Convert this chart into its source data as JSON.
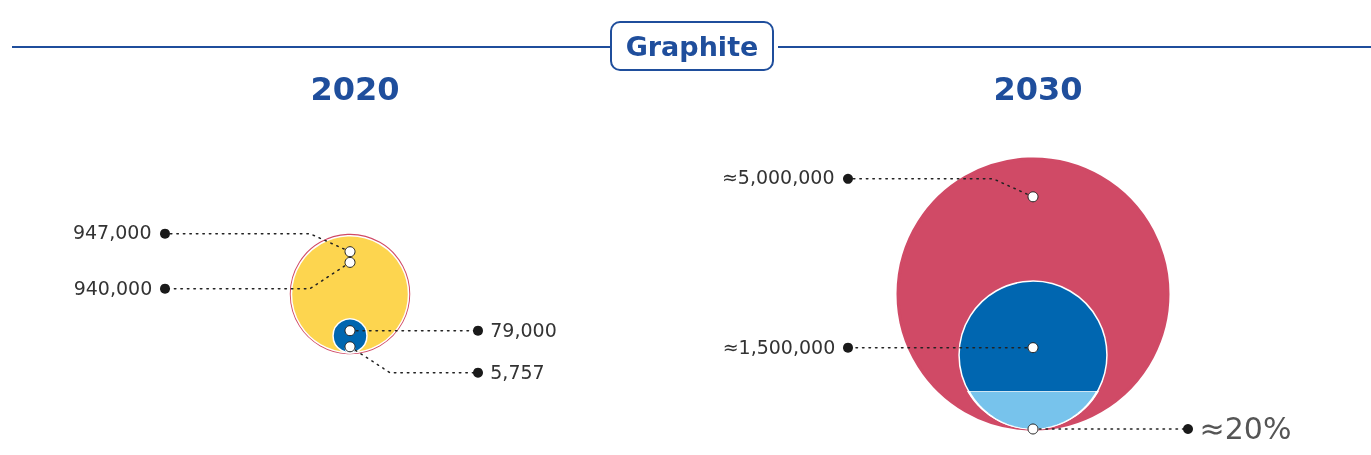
{
  "chart_data": [
    {
      "type": "other",
      "title": "Graphite",
      "subtitle": "2020",
      "categories": [
        null,
        null,
        null,
        null
      ],
      "values": [
        947000,
        940000,
        79000,
        5757
      ],
      "colors": [
        "#d04a66",
        "#fdd54f",
        "#0066b0",
        "#77c3ec"
      ],
      "value_labels": [
        "947,000",
        "940,000",
        "79,000",
        "5,757"
      ]
    },
    {
      "type": "other",
      "subtitle": "2030",
      "categories": [
        null,
        null
      ],
      "values": [
        5000000,
        1500000
      ],
      "colors": [
        "#d04a66",
        "#0066b0"
      ],
      "value_labels": [
        "≈5,000,000",
        "≈1,500,000"
      ]
    },
    {
      "type": "other",
      "categories": [
        null
      ],
      "values": [
        20
      ],
      "colors": [
        "#77c3ec"
      ],
      "value_labels": [
        "≈20%"
      ]
    }
  ]
}
